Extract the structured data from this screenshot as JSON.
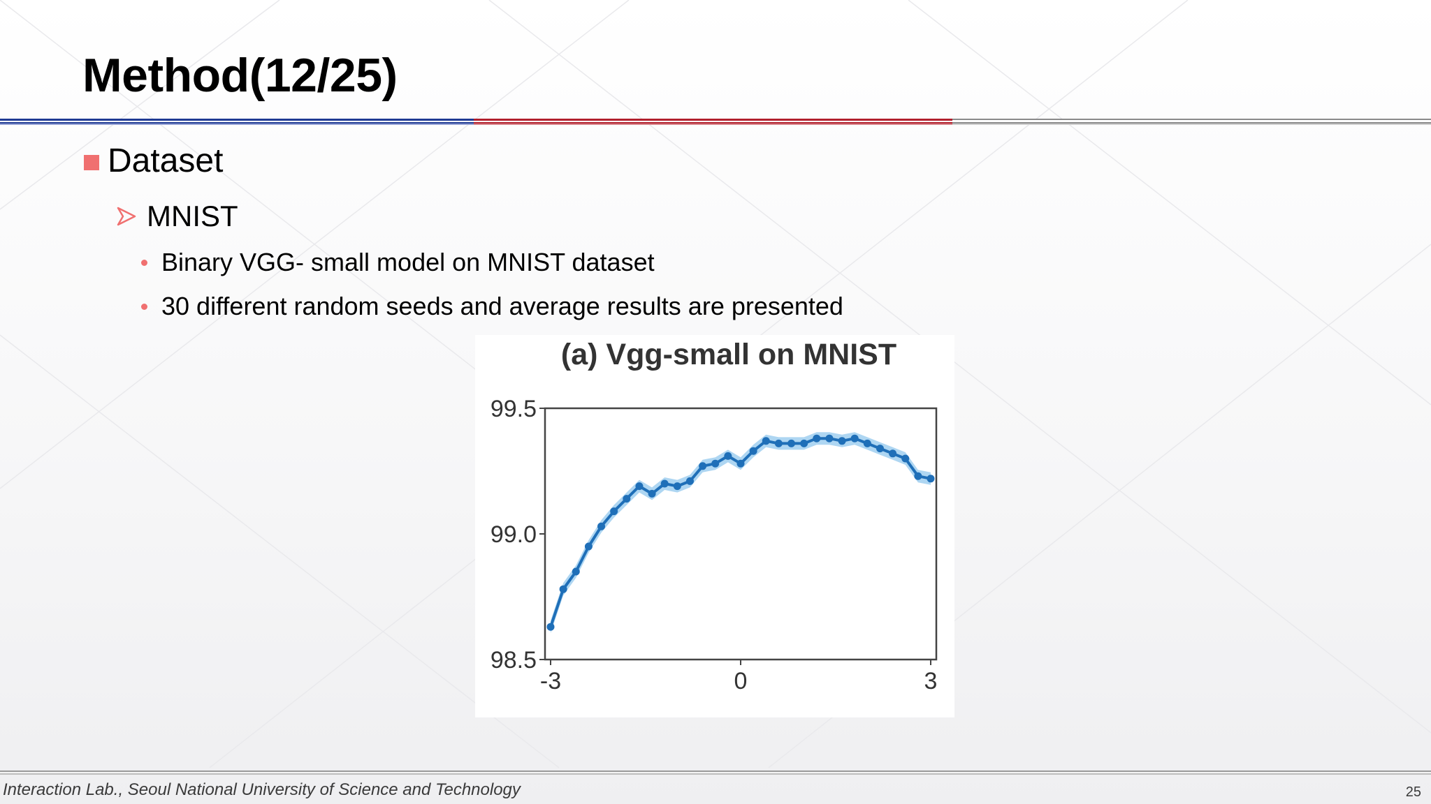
{
  "slide": {
    "title": "Method(12/25)",
    "level1": "Dataset",
    "level2": "MNIST",
    "bullets": [
      "Binary VGG- small model on MNIST dataset",
      "30 different random seeds and average results are presented"
    ],
    "footer": "Interaction Lab., Seoul National University of Science and Technology",
    "page_number": "25"
  },
  "colors": {
    "accent_red": "#f07070",
    "rule_blue": "#1f3a93",
    "rule_red": "#b11f2c",
    "line_blue": "#1f6fb8",
    "band_blue": "#8cc4ec"
  },
  "icons": {
    "level1": "square-bullet-icon",
    "level2": "arrow-bullet-icon",
    "level3": "dot-bullet-icon"
  },
  "chart_data": {
    "type": "line",
    "title": "(a) Vgg-small on MNIST",
    "xlabel": "",
    "ylabel": "",
    "xlim": [
      -3,
      3
    ],
    "ylim": [
      98.5,
      99.5
    ],
    "x_ticks": [
      "-3",
      "0",
      "3"
    ],
    "y_ticks": [
      "99.5",
      "99.0",
      "98.5"
    ],
    "grid": false,
    "legend": "none",
    "series": [
      {
        "x": [
          -3.0,
          -2.8,
          -2.6,
          -2.4,
          -2.2,
          -2.0,
          -1.8,
          -1.6,
          -1.4,
          -1.2,
          -1.0,
          -0.8,
          -0.6,
          -0.4,
          -0.2,
          0.0,
          0.2,
          0.4,
          0.6,
          0.8,
          1.0,
          1.2,
          1.4,
          1.6,
          1.8,
          2.0,
          2.2,
          2.4,
          2.6,
          2.8,
          3.0
        ],
        "y": [
          98.63,
          98.78,
          98.85,
          98.95,
          99.03,
          99.09,
          99.14,
          99.19,
          99.16,
          99.2,
          99.19,
          99.21,
          99.27,
          99.28,
          99.31,
          99.28,
          99.33,
          99.37,
          99.36,
          99.36,
          99.36,
          99.38,
          99.38,
          99.37,
          99.38,
          99.36,
          99.34,
          99.32,
          99.3,
          99.23,
          99.22
        ],
        "band": 0.025
      }
    ]
  }
}
